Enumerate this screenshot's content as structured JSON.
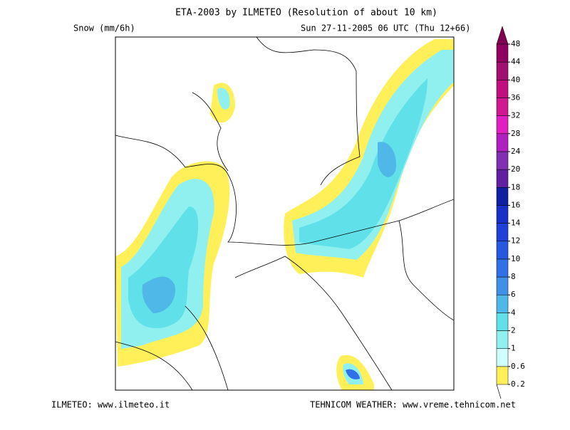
{
  "header": {
    "title": "ETA-2003 by ILMETEO (Resolution of about 10 km)",
    "variable": "Snow (mm/6h)",
    "valid_time": "Sun 27-11-2005 06 UTC (Thu 12+66)"
  },
  "footer": {
    "left": "ILMETEO: www.ilmeteo.it",
    "right": "TEHNICOM WEATHER: www.vreme.tehnicom.net"
  },
  "colorbar": {
    "levels": [
      0.2,
      0.6,
      1,
      2,
      4,
      6,
      8,
      10,
      12,
      14,
      16,
      18,
      20,
      24,
      28,
      32,
      36,
      40,
      44,
      48
    ],
    "colors": [
      "#fff05a",
      "#d0ffff",
      "#90f0f0",
      "#60e0e8",
      "#50b8e8",
      "#4090e8",
      "#3070e8",
      "#2858e0",
      "#2040d8",
      "#1830c8",
      "#1020a0",
      "#6020a0",
      "#8030b0",
      "#b020c0",
      "#e020c0",
      "#d01890",
      "#c01080",
      "#a01070",
      "#900060",
      "#800050"
    ]
  }
}
